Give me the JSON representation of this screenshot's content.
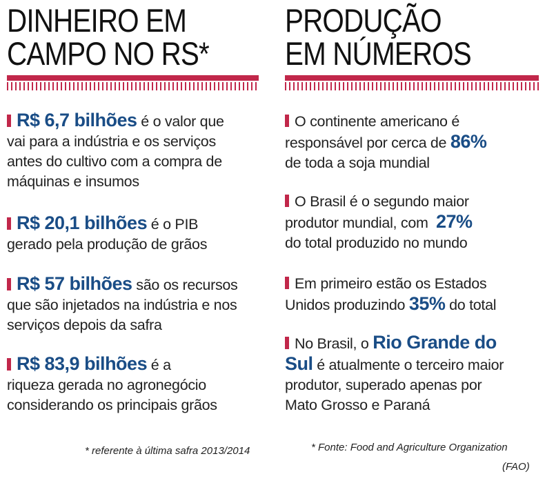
{
  "left": {
    "title_line1": "DINHEIRO EM",
    "title_line2": "CAMPO NO RS*",
    "items": [
      {
        "highlight": "R$ 6,7 bilhões",
        "after": " é o valor que",
        "line2": "vai para a indústria e os serviços",
        "line3": "antes do cultivo com a compra de",
        "line4": "máquinas e insumos"
      },
      {
        "highlight": "R$ 20,1 bilhões",
        "after": " é o PIB",
        "line2": "gerado pela produção de grãos"
      },
      {
        "highlight": "R$ 57 bilhões",
        "after": " são os recursos",
        "line2": "que são injetados na indústria e nos",
        "line3": "serviços depois da safra"
      },
      {
        "highlight": "R$ 83,9 bilhões",
        "after": " é a",
        "line2": "riqueza gerada no agronegócio",
        "line3": "considerando os principais grãos"
      }
    ],
    "footnote": "* referente à última safra 2013/2014"
  },
  "right": {
    "title_line1": "PRODUÇÃO",
    "title_line2": "EM NÚMEROS",
    "items": [
      {
        "line1": "O continente americano é",
        "line2_before": "responsável por cerca de ",
        "line2_highlight": "86%",
        "line3": "de toda a soja mundial"
      },
      {
        "line1": "O Brasil é o segundo maior",
        "line2_before": "produtor mundial, com  ",
        "line2_highlight": "27%",
        "line3": "do total produzido no mundo"
      },
      {
        "line1": "Em primeiro estão os Estados",
        "line2_before": "Unidos produzindo ",
        "line2_highlight": "35%",
        "line2_after": " do total"
      },
      {
        "line1_before": "No Brasil, o ",
        "line1_highlight": "Rio Grande do",
        "line2_highlight": "Sul",
        "line2_after": " é atualmente o terceiro maior",
        "line3": "produtor, superado apenas por",
        "line4": "Mato Grosso e Paraná"
      }
    ],
    "footnote_line1": "* Fonte:  Food and Agriculture Organization",
    "footnote_line2": "(FAO)"
  },
  "colors": {
    "accent": "#c1274a",
    "highlight": "#1a4d86",
    "text": "#222222"
  }
}
